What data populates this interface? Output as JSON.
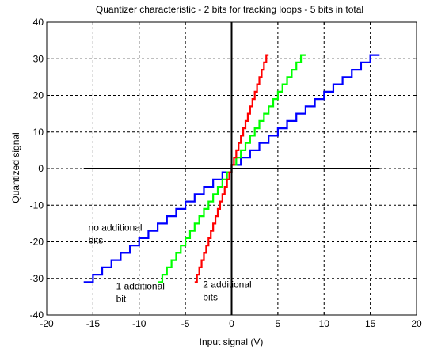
{
  "chart_data": {
    "type": "line",
    "title": "Quantizer characteristic - 2 bits for tracking loops -  5 bits in total",
    "xlabel": "Input signal (V)",
    "ylabel": "Quantized signal",
    "xlim": [
      -20,
      20
    ],
    "ylim": [
      -40,
      40
    ],
    "xticks": [
      -20,
      -15,
      -10,
      -5,
      0,
      5,
      10,
      15,
      20
    ],
    "yticks": [
      -40,
      -30,
      -20,
      -10,
      0,
      10,
      20,
      30,
      40
    ],
    "grid": true,
    "series": [
      {
        "color": "#0000ff",
        "x_min": -16,
        "x_max": 16,
        "step_x": 1,
        "levels": [
          -31,
          31
        ],
        "step_y": 2
      },
      {
        "color": "#00ff00",
        "x_min": -8,
        "x_max": 8,
        "step_x": 0.5,
        "levels": [
          -31,
          31
        ],
        "step_y": 2
      },
      {
        "color": "#ff0000",
        "x_min": -4,
        "x_max": 4,
        "step_x": 0.25,
        "levels": [
          -31,
          31
        ],
        "step_y": 2
      }
    ],
    "axis_lines": {
      "color": "#000000",
      "x_axis_range": [
        -16,
        16
      ],
      "y_axis_range": [
        -40,
        40
      ]
    },
    "annotations": [
      {
        "lines": [
          "no additional",
          "bits"
        ],
        "x": -15.5,
        "y": -17
      },
      {
        "lines": [
          "1 additional",
          "bit"
        ],
        "x": -12.5,
        "y": -33
      },
      {
        "lines": [
          "2 additional",
          "bits"
        ],
        "x": -3.1,
        "y": -32.5
      }
    ]
  }
}
